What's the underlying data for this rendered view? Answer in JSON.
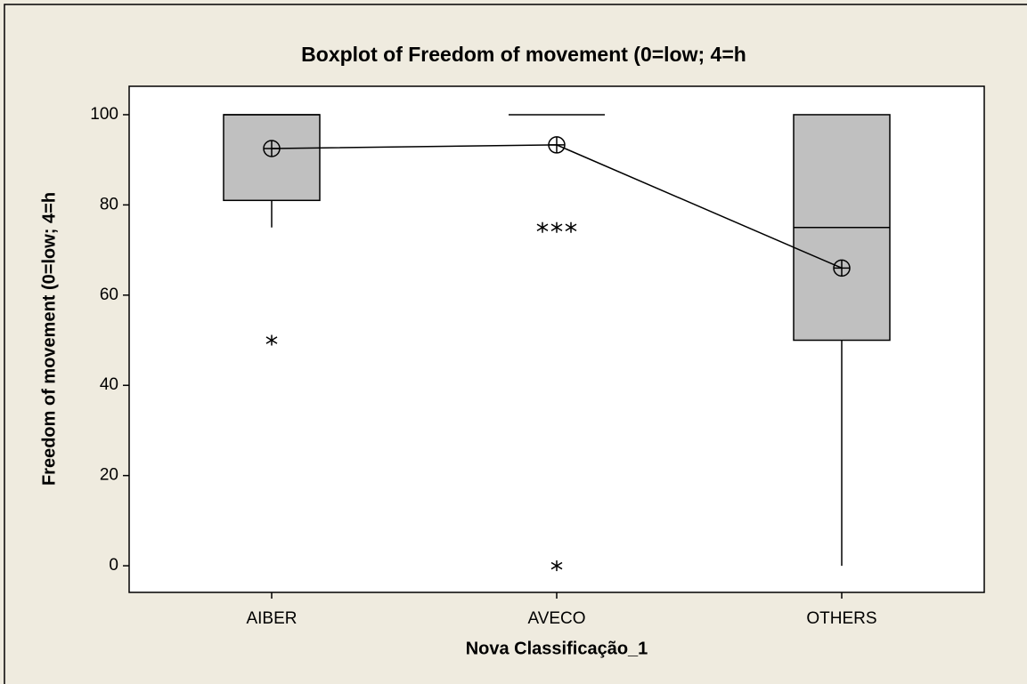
{
  "chart_data": {
    "type": "box",
    "title": "Boxplot of Freedom of movement (0=low; 4=h",
    "x_label": "Nova Classificação_1",
    "y_label": "Freedom of movement (0=low; 4=h",
    "categories": [
      "AIBER",
      "AVECO",
      "OTHERS"
    ],
    "boxes": [
      {
        "q1": 81,
        "median": 100,
        "q3": 100,
        "whisker_low": 75,
        "whisker_high": 100,
        "mean": 92.5,
        "outliers": [
          50
        ]
      },
      {
        "q1": 100,
        "median": 100,
        "q3": 100,
        "whisker_low": 100,
        "whisker_high": 100,
        "mean": 93.3,
        "outliers": [
          75,
          75,
          75,
          0
        ]
      },
      {
        "q1": 50,
        "median": 75,
        "q3": 100,
        "whisker_low": 0,
        "whisker_high": 100,
        "mean": 66,
        "outliers": []
      }
    ],
    "color": "#c0c0c0",
    "mean_connect": true,
    "ylim": [
      -5.9,
      106.3
    ],
    "yticks": [
      0,
      20,
      40,
      60,
      80,
      100
    ]
  }
}
